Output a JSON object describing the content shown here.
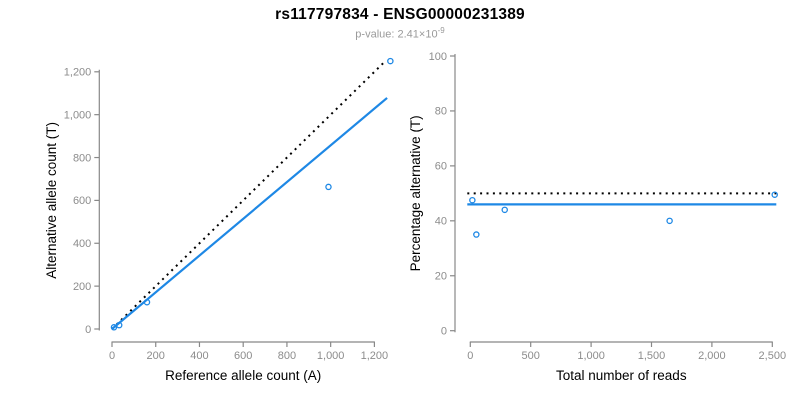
{
  "header": {
    "title": "rs117797834 - ENSG00000231389",
    "subtitle_prefix": "p-value: 2.41×10",
    "subtitle_exponent": "-9"
  },
  "colors": {
    "accent_blue": "#1E88E5",
    "dotted_black": "#000000",
    "axis_gray": "#888888",
    "tick_label_gray": "#8c8c8c",
    "subtitle_gray": "#9a9a9a"
  },
  "chart_data": [
    {
      "type": "scatter",
      "name": "allele-counts-plot",
      "xlabel": "Reference allele count (A)",
      "ylabel": "Alternative allele count (T)",
      "xticks": [
        0,
        200,
        400,
        600,
        800,
        1000,
        1200
      ],
      "yticks": [
        0,
        200,
        400,
        600,
        800,
        1000,
        1200
      ],
      "xlim": [
        0,
        1270
      ],
      "ylim": [
        0,
        1270
      ],
      "grid": false,
      "points": {
        "x": [
          9,
          33,
          160,
          990,
          1273
        ],
        "y": [
          8,
          18,
          125,
          663,
          1250
        ]
      },
      "lines": [
        {
          "name": "identity-line",
          "style": "dotted",
          "color": "#000000",
          "from": [
            0,
            0
          ],
          "to": [
            1253,
            1253
          ]
        },
        {
          "name": "fit-line",
          "style": "solid",
          "color": "#1E88E5",
          "slope": 0.857,
          "from": [
            0,
            0
          ],
          "to": [
            1258,
            1078
          ]
        }
      ]
    },
    {
      "type": "scatter",
      "name": "percentage-alternative-plot",
      "xlabel": "Total number of reads",
      "ylabel": "Percentage alternative (T)",
      "xticks": [
        0,
        500,
        1000,
        1500,
        2000,
        2500
      ],
      "yticks": [
        0,
        20,
        40,
        60,
        80,
        100
      ],
      "xlim": [
        0,
        2550
      ],
      "ylim": [
        0,
        100
      ],
      "grid": false,
      "points": {
        "x": [
          17,
          50,
          285,
          1650,
          2520
        ],
        "y": [
          47.5,
          35,
          44,
          40,
          49.5
        ]
      },
      "lines": [
        {
          "name": "expected-50pct-line",
          "style": "dotted",
          "color": "#000000",
          "hline": 50
        },
        {
          "name": "mean-pct-line",
          "style": "solid",
          "color": "#1E88E5",
          "hline": 46
        }
      ]
    }
  ]
}
